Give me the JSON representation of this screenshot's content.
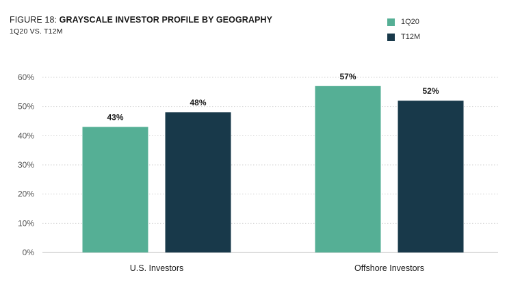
{
  "header": {
    "title_prefix": "FIGURE 18: ",
    "title_main": "GRAYSCALE INVESTOR PROFILE BY GEOGRAPHY",
    "subtitle": "1Q20 VS. T12M"
  },
  "chart_data": {
    "type": "bar",
    "title": "FIGURE 18: GRAYSCALE INVESTOR PROFILE BY GEOGRAPHY",
    "subtitle": "1Q20 VS. T12M",
    "categories": [
      "U.S. Investors",
      "Offshore Investors"
    ],
    "series": [
      {
        "name": "1Q20",
        "values": [
          43,
          57
        ],
        "labels": [
          "43%",
          "57%"
        ],
        "color": "#55af95"
      },
      {
        "name": "T12M",
        "values": [
          48,
          52
        ],
        "labels": [
          "48%",
          "52%"
        ],
        "color": "#18394a"
      }
    ],
    "ylim": [
      0,
      60
    ],
    "yticks": [
      0,
      10,
      20,
      30,
      40,
      50,
      60
    ],
    "ytick_labels": [
      "0%",
      "10%",
      "20%",
      "30%",
      "40%",
      "50%",
      "60%"
    ],
    "xlabel": "",
    "ylabel": "",
    "grid": "horizontal dotted",
    "legend_position": "top-right"
  }
}
